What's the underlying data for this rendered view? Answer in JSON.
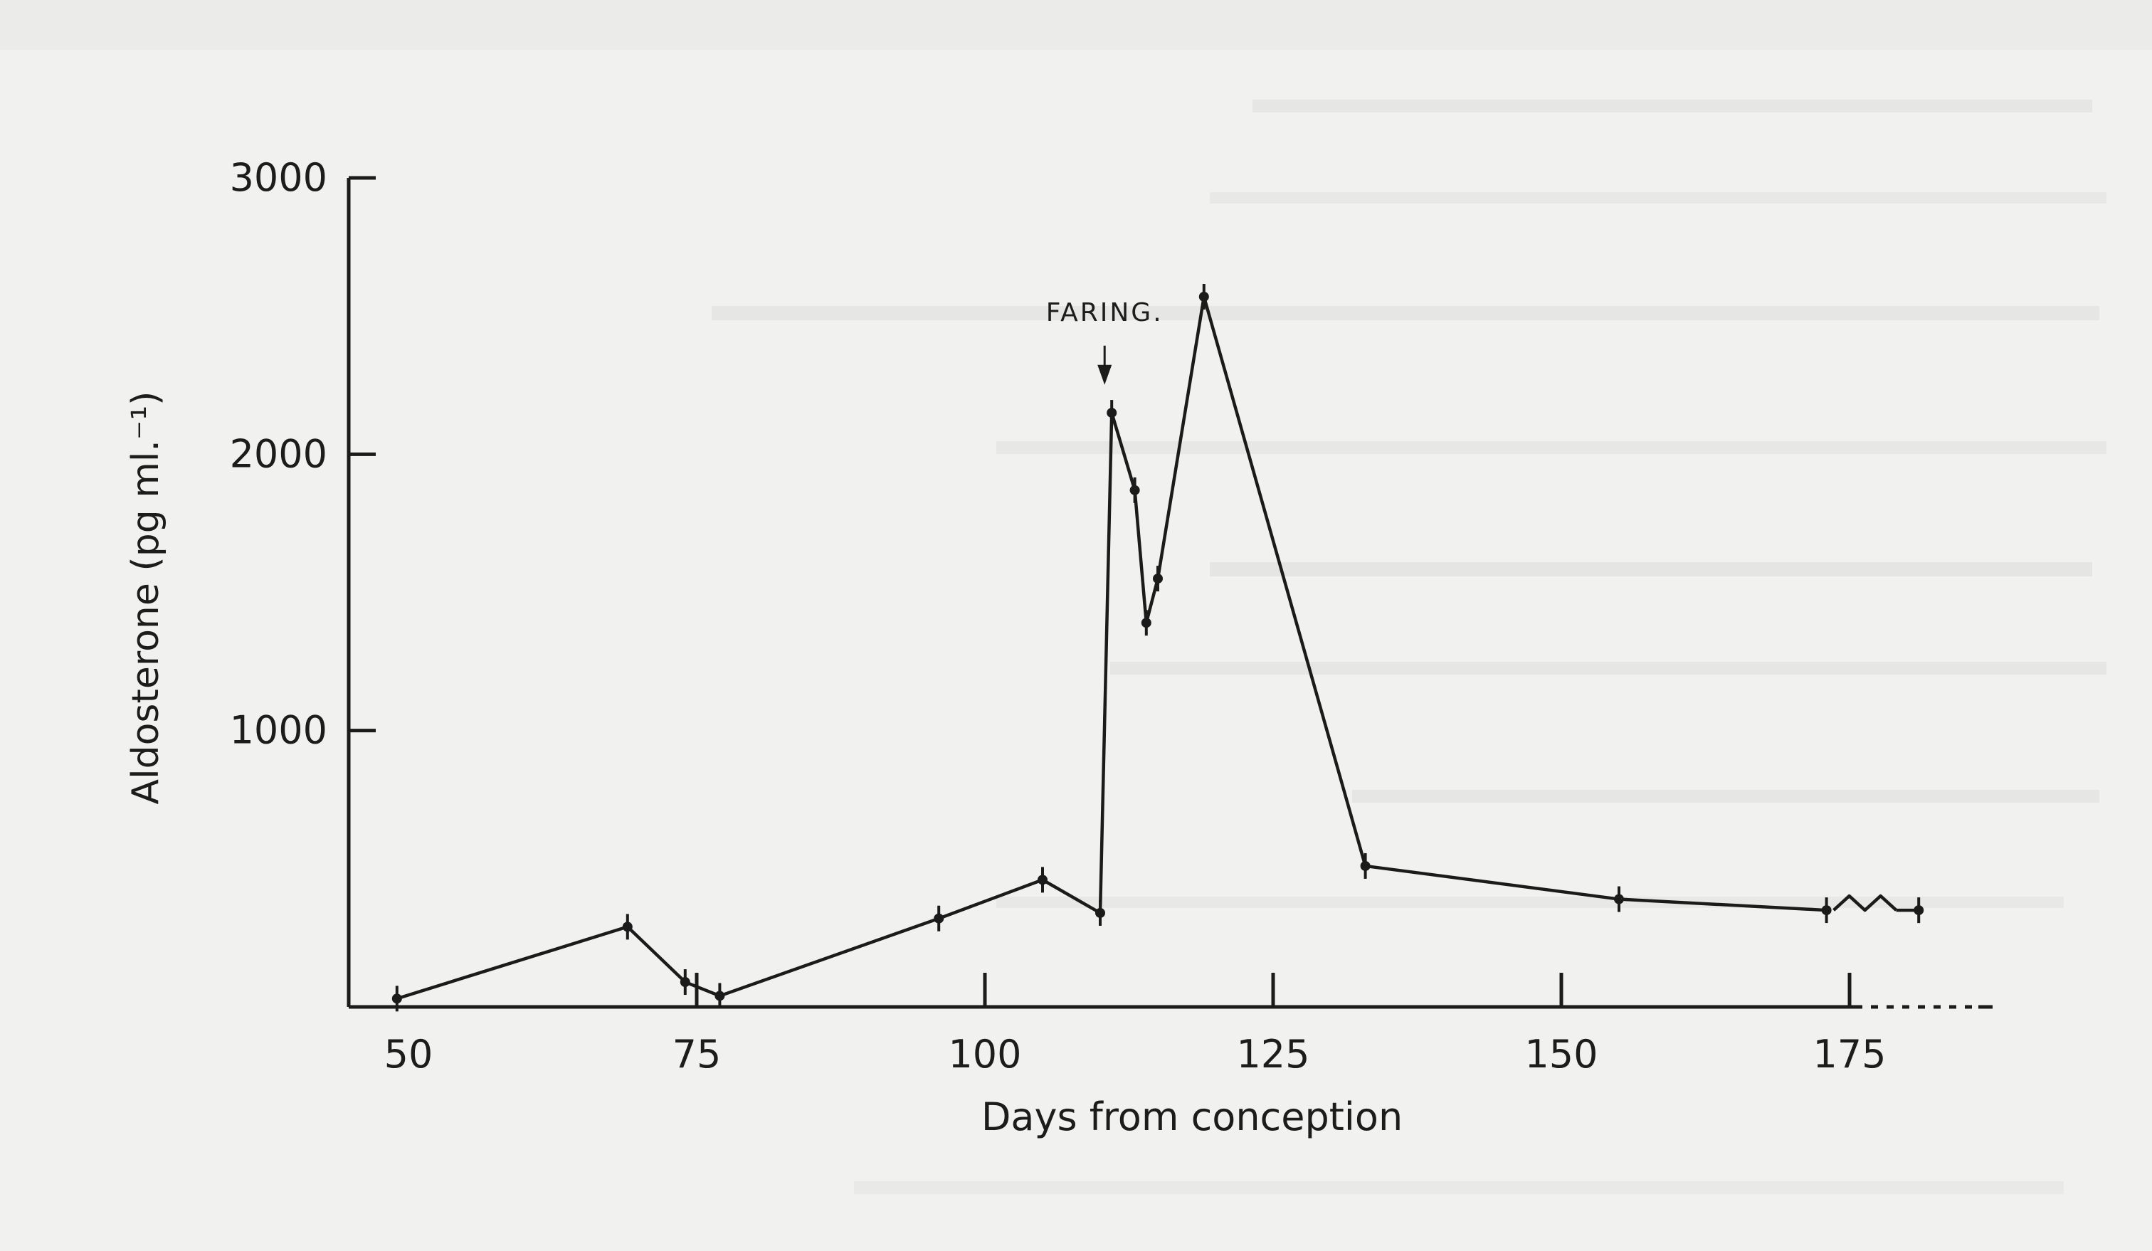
{
  "colors": {
    "paper": "#f1f1f0",
    "ink": "#1b1b1b",
    "bleed_through": "#c9c9c9"
  },
  "chart_data": {
    "type": "line",
    "title": "",
    "xlabel": "Days from conception",
    "ylabel": "Aldosterone (pg ml.⁻¹)",
    "xlim": [
      49,
      181
    ],
    "ylim": [
      0,
      3000
    ],
    "x_ticks": [
      50,
      75,
      100,
      125,
      150,
      175
    ],
    "y_ticks": [
      1000,
      2000,
      3000
    ],
    "grid": false,
    "legend": "none",
    "x_axis_break_after": 175,
    "annotations": [
      {
        "text": "FARING.",
        "x": 111,
        "y": 2380,
        "marker": "arrow-down"
      }
    ],
    "series": [
      {
        "values": [
          {
            "x": 49,
            "y": 30
          },
          {
            "x": 69,
            "y": 290
          },
          {
            "x": 74,
            "y": 90
          },
          {
            "x": 77,
            "y": 40
          },
          {
            "x": 96,
            "y": 320
          },
          {
            "x": 105,
            "y": 460
          },
          {
            "x": 110,
            "y": 340
          },
          {
            "x": 111,
            "y": 2150
          },
          {
            "x": 113,
            "y": 1870
          },
          {
            "x": 114,
            "y": 1390
          },
          {
            "x": 115,
            "y": 1550
          },
          {
            "x": 119,
            "y": 2570
          },
          {
            "x": 133,
            "y": 510
          },
          {
            "x": 155,
            "y": 390
          },
          {
            "x": 173,
            "y": 350
          }
        ]
      },
      {
        "line_style": "after-axis-break",
        "values": [
          {
            "x": 181,
            "y": 350
          }
        ]
      }
    ]
  }
}
